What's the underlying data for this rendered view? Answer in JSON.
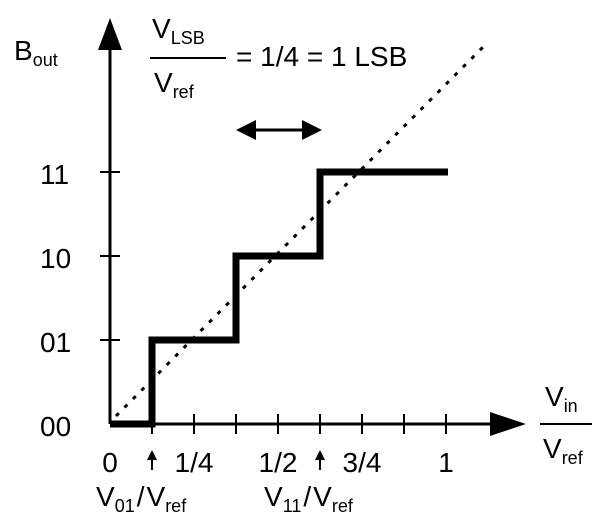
{
  "y_axis": {
    "label": "B",
    "label_sub": "out",
    "ticks": [
      "00",
      "01",
      "10",
      "11"
    ]
  },
  "x_axis": {
    "label_num": "V",
    "label_num_sub": "in",
    "label_den": "V",
    "label_den_sub": "ref",
    "ticks": [
      "0",
      "1/4",
      "1/2",
      "3/4",
      "1"
    ]
  },
  "header": {
    "num": "V",
    "num_sub": "LSB",
    "den": "V",
    "den_sub": "ref",
    "equals": "= 1/4 = 1 LSB"
  },
  "markers": [
    {
      "main": "V",
      "sub": "01",
      "slash": "/",
      "den": "V",
      "den_sub": "ref"
    },
    {
      "main": "V",
      "sub": "11",
      "slash": "/",
      "den": "V",
      "den_sub": "ref"
    }
  ]
}
